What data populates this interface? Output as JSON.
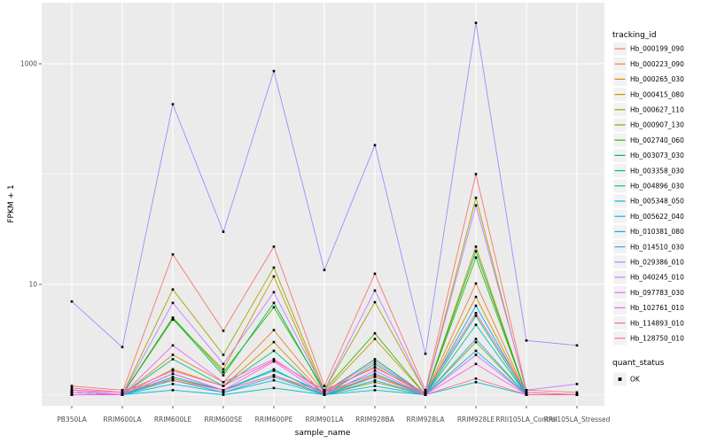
{
  "chart_data": {
    "type": "line",
    "title": "",
    "xlabel": "sample_name",
    "ylabel": "FPKM + 1",
    "y_scale": "log10",
    "ylim_log10": [
      -0.15,
      3.55
    ],
    "grid": true,
    "legend_position": "right",
    "legend_title": "tracking_id",
    "legend2_title": "quant_status",
    "quant_status_items": [
      {
        "label": "OK"
      }
    ],
    "y_ticks": [
      {
        "label": "1000",
        "value": 1000
      },
      {
        "label": "10",
        "value": 10
      }
    ],
    "y_minor_breaks": [
      1,
      100
    ],
    "x_categories": [
      "PB350LA",
      "RRIM600LA",
      "RRIM600LE",
      "RRIM600SE",
      "RRIM600PE",
      "RRIM901LA",
      "RRIM928BA",
      "RRIM928LA",
      "RRIM928LE",
      "RRII105LA_Control",
      "RRII105LA_Stressed"
    ],
    "series": [
      {
        "name": "Hb_000199_090",
        "color": "#F8766D",
        "values": [
          1.15,
          1.05,
          18.7,
          3.8,
          22,
          1.2,
          12.5,
          1.1,
          100,
          1.1,
          1.05
        ]
      },
      {
        "name": "Hb_000223_090",
        "color": "#EA8331",
        "values": [
          1.05,
          1.0,
          2.3,
          1.3,
          3.85,
          1.05,
          1.8,
          1.0,
          10.2,
          1.0,
          1.0
        ]
      },
      {
        "name": "Hb_000265_030",
        "color": "#D89000",
        "values": [
          1.0,
          1.0,
          1.7,
          1.2,
          3.0,
          1.0,
          1.5,
          1.0,
          7.7,
          1.0,
          1.0
        ]
      },
      {
        "name": "Hb_000415_080",
        "color": "#C09B00",
        "values": [
          1.0,
          1.0,
          4.8,
          1.7,
          11.8,
          1.05,
          3.2,
          1.0,
          22,
          1.0,
          1.0
        ]
      },
      {
        "name": "Hb_000627_110",
        "color": "#A3A500",
        "values": [
          1.05,
          1.0,
          9.0,
          2.3,
          14.2,
          1.1,
          6.9,
          1.05,
          61,
          1.05,
          1.0
        ]
      },
      {
        "name": "Hb_000907_130",
        "color": "#7CAE00",
        "values": [
          1.0,
          1.0,
          1.4,
          1.1,
          1.5,
          1.0,
          1.3,
          1.0,
          3.0,
          1.0,
          1.0
        ]
      },
      {
        "name": "Hb_002740_060",
        "color": "#39B600",
        "values": [
          1.0,
          1.0,
          5.0,
          1.6,
          6.2,
          1.1,
          3.6,
          1.0,
          17.5,
          1.0,
          1.0
        ]
      },
      {
        "name": "Hb_003073_030",
        "color": "#00BB4E",
        "values": [
          1.0,
          1.0,
          4.9,
          1.5,
          6.8,
          1.05,
          2.1,
          1.0,
          20,
          1.0,
          1.0
        ]
      },
      {
        "name": "Hb_003358_030",
        "color": "#00BF7D",
        "values": [
          1.05,
          1.0,
          2.1,
          1.2,
          2.5,
          1.0,
          1.9,
          1.0,
          5.2,
          1.0,
          1.0
        ]
      },
      {
        "name": "Hb_004896_030",
        "color": "#00C1A3",
        "values": [
          1.0,
          1.0,
          1.55,
          1.1,
          1.7,
          1.0,
          1.45,
          1.0,
          4.3,
          1.0,
          1.0
        ]
      },
      {
        "name": "Hb_005348_050",
        "color": "#00BFC4",
        "values": [
          1.05,
          1.0,
          1.1,
          1.0,
          1.15,
          1.0,
          1.1,
          1.0,
          1.3,
          1.0,
          1.0
        ]
      },
      {
        "name": "Hb_005622_040",
        "color": "#00BAE0",
        "values": [
          1.0,
          1.0,
          1.25,
          1.05,
          1.35,
          1.0,
          1.2,
          1.0,
          2.5,
          1.0,
          1.0
        ]
      },
      {
        "name": "Hb_010381_080",
        "color": "#00B0F6",
        "values": [
          1.0,
          1.0,
          1.45,
          1.1,
          1.65,
          1.05,
          1.55,
          1.0,
          6.4,
          1.0,
          1.0
        ]
      },
      {
        "name": "Hb_014510_030",
        "color": "#35A2FF",
        "values": [
          1.0,
          1.0,
          1.35,
          1.05,
          1.45,
          1.0,
          1.35,
          1.0,
          3.2,
          1.0,
          1.0
        ]
      },
      {
        "name": "Hb_029386_010",
        "color": "#9590FF",
        "values": [
          7.0,
          2.7,
          430,
          30,
          860,
          13.5,
          183,
          2.35,
          2350,
          3.1,
          2.8
        ]
      },
      {
        "name": "Hb_040245_010",
        "color": "#C77CFF",
        "values": [
          1.1,
          1.0,
          6.8,
          1.9,
          8.5,
          1.1,
          8.8,
          1.05,
          52,
          1.1,
          1.25
        ]
      },
      {
        "name": "Hb_097783_030",
        "color": "#E76BF3",
        "values": [
          1.05,
          1.0,
          2.8,
          1.3,
          2.1,
          1.05,
          2.0,
          1.0,
          2.3,
          1.0,
          1.0
        ]
      },
      {
        "name": "Hb_102761_010",
        "color": "#FA62DB",
        "values": [
          1.0,
          1.0,
          1.55,
          1.1,
          2.0,
          1.0,
          1.65,
          1.0,
          1.9,
          1.0,
          1.0
        ]
      },
      {
        "name": "Hb_114893_010",
        "color": "#FF62BC",
        "values": [
          1.1,
          1.05,
          1.65,
          1.2,
          2.05,
          1.1,
          1.75,
          1.05,
          5.5,
          1.05,
          1.0
        ]
      },
      {
        "name": "Hb_128750_010",
        "color": "#FF6A98",
        "values": [
          1.2,
          1.1,
          1.35,
          1.1,
          1.5,
          1.05,
          1.45,
          1.0,
          1.4,
          1.0,
          1.0
        ]
      }
    ],
    "colors": {
      "panel_bg": "#EBEBEB",
      "grid": "#FFFFFF",
      "tick_mark": "#333333",
      "tick_text": "#4D4D4D",
      "axis_title": "#000000",
      "legend_key_bg": "#F2F2F2",
      "point": "#000000"
    }
  }
}
